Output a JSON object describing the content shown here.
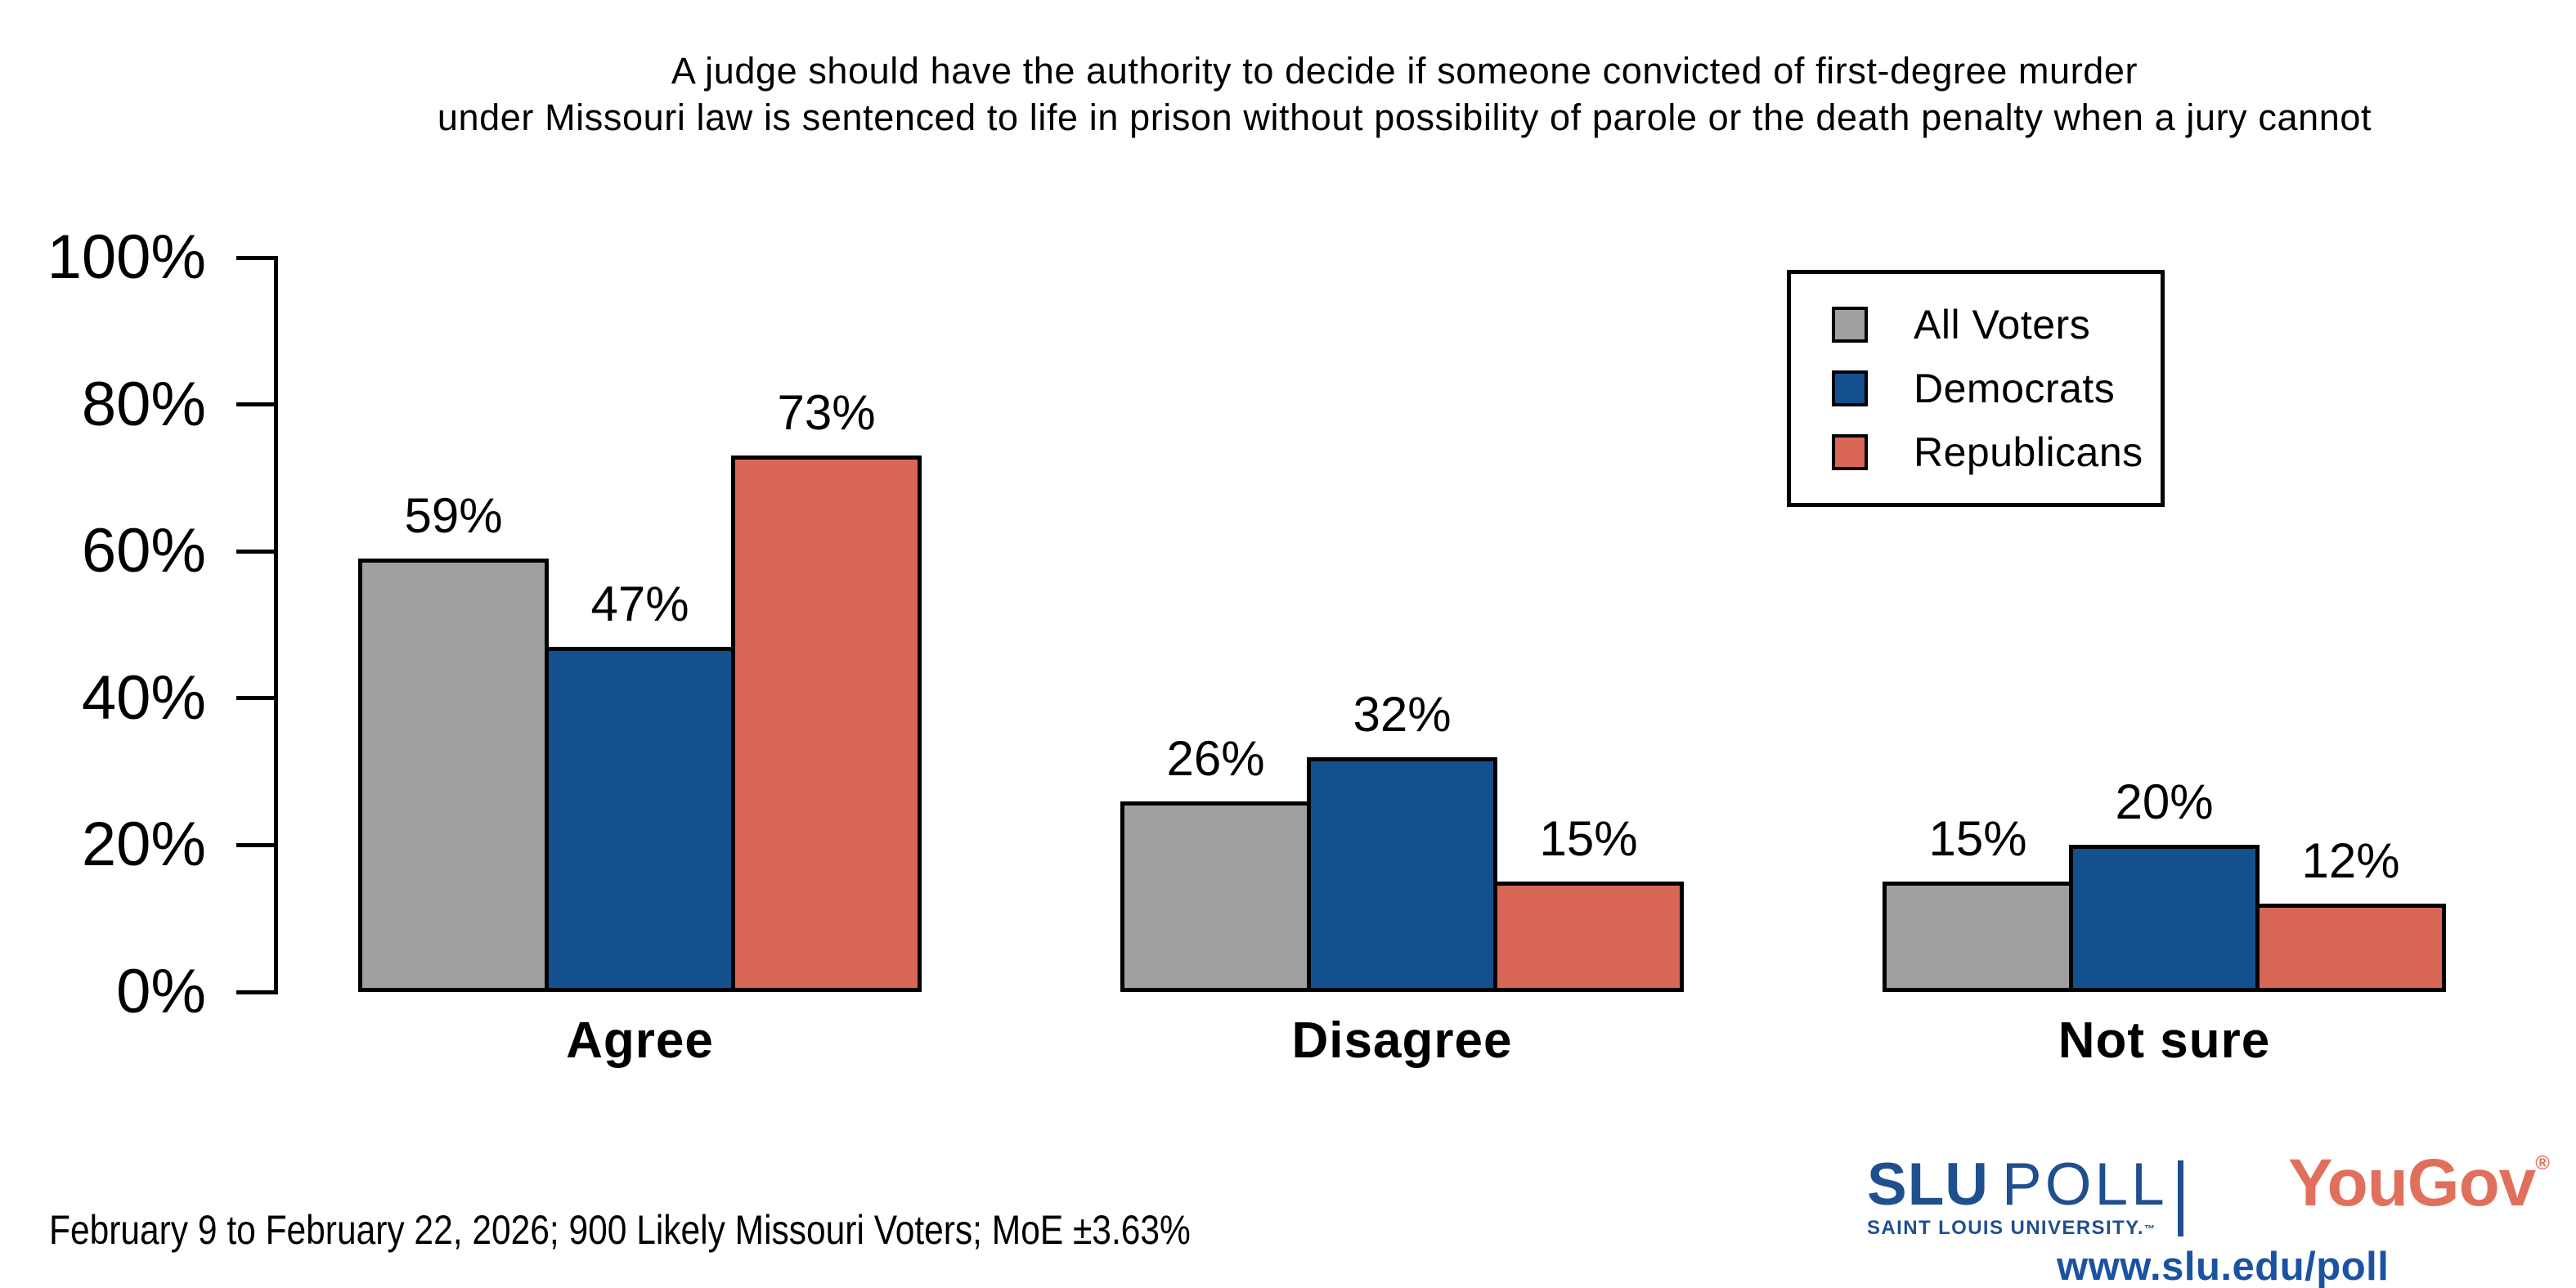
{
  "chart_data": {
    "type": "bar",
    "title_lines": [
      "A judge should have the authority to decide if someone convicted of first-degree murder",
      "under Missouri law is sentenced to life in prison without possibility of parole or the death penalty when a jury cannot"
    ],
    "categories": [
      "Agree",
      "Disagree",
      "Not sure"
    ],
    "series": [
      {
        "name": "All Voters",
        "color": "#A0A0A0",
        "values": [
          59,
          26,
          15
        ]
      },
      {
        "name": "Democrats",
        "color": "#14508E",
        "values": [
          47,
          32,
          20
        ]
      },
      {
        "name": "Republicans",
        "color": "#D96757",
        "values": [
          73,
          15,
          12
        ]
      }
    ],
    "value_suffix": "%",
    "ylim": [
      0,
      100
    ],
    "yticks": [
      "0%",
      "20%",
      "40%",
      "60%",
      "80%",
      "100%"
    ],
    "grid": false,
    "legend_position": "top-right"
  },
  "footer": {
    "text": "February 9 to February 22, 2026; 900 Likely Missouri Voters; MoE ±3.63%"
  },
  "branding": {
    "slu": "SLU",
    "poll": "POLL",
    "slu_sub": "SAINT LOUIS UNIVERSITY.",
    "slu_tm": "™",
    "yougov": "YouGov",
    "yougov_reg": "®",
    "url": "www.slu.edu/poll",
    "slu_blue": "#1F4F8F",
    "url_blue": "#1B53A3",
    "yougov_red": "#E0705C"
  }
}
